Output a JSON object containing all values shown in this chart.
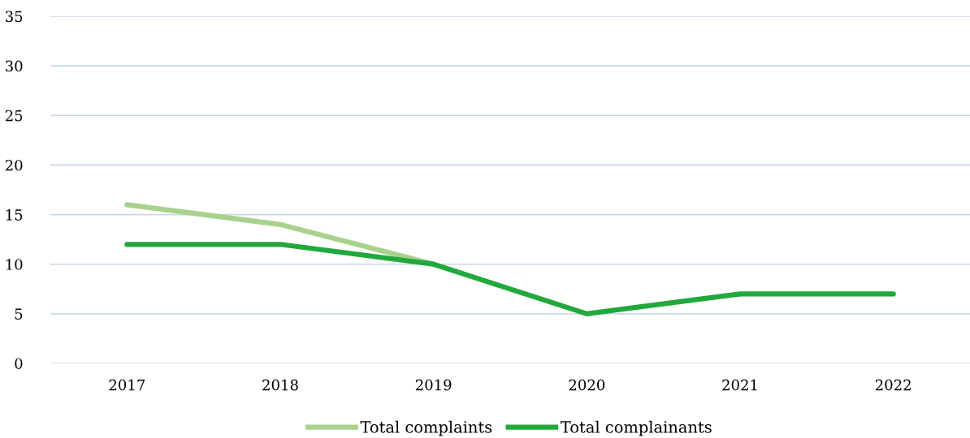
{
  "chart_data": {
    "type": "line",
    "categories": [
      "2017",
      "2018",
      "2019",
      "2020",
      "2021",
      "2022"
    ],
    "series": [
      {
        "name": "Total complaints",
        "color": "#a9d18e",
        "values": [
          16,
          14,
          10,
          null,
          null,
          null
        ]
      },
      {
        "name": "Total complainants",
        "color": "#22a83c",
        "values": [
          12,
          12,
          10,
          5,
          7,
          7
        ]
      }
    ],
    "ylim": [
      0,
      35
    ],
    "yticks": [
      0,
      5,
      10,
      15,
      20,
      25,
      30,
      35
    ],
    "grid": "y",
    "legend": "bottom",
    "marker": "none",
    "line_style": "solid"
  }
}
